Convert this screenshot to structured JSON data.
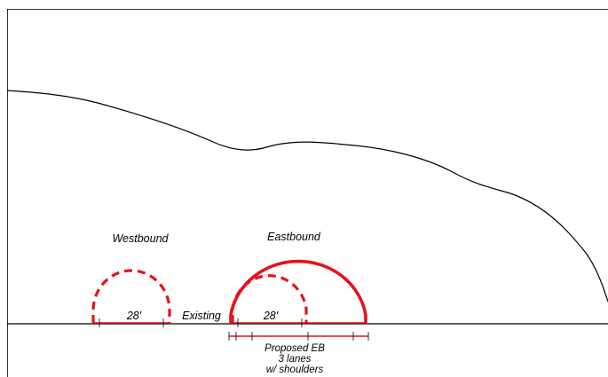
{
  "colors": {
    "line": "#000000",
    "tunnel": "#e8111a",
    "background": "#ffffff"
  },
  "labels": {
    "westbound": "Westbound",
    "eastbound": "Eastbound",
    "existing": "Existing",
    "width_west": "28'",
    "width_east": "28'",
    "proposed_line1": "Proposed EB",
    "proposed_line2": "3 lanes",
    "proposed_line3": "w/ shoulders"
  },
  "elements": {
    "ground_profile": "ground-surface-profile",
    "baseline": "roadway-baseline",
    "existing_westbound": "existing-westbound-tunnel-dashed",
    "existing_eastbound": "existing-eastbound-tunnel-dashed",
    "proposed_eastbound": "proposed-eastbound-tunnel-solid"
  }
}
